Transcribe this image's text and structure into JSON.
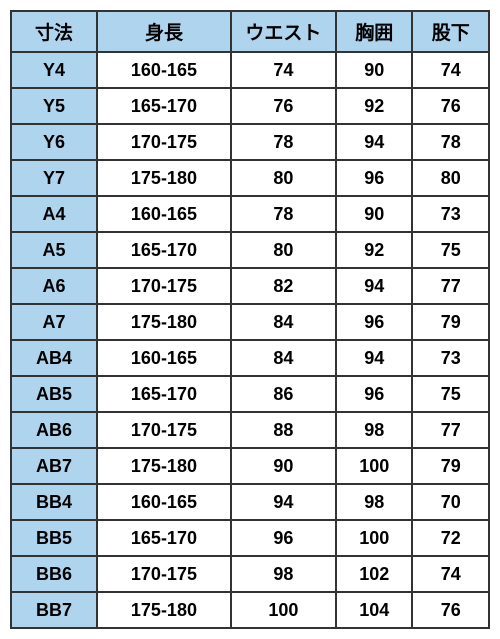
{
  "table": {
    "header_bg": "#aed4ee",
    "sizecol_bg": "#aed4ee",
    "border_color": "#333333",
    "text_color": "#000000",
    "columns": [
      "寸法",
      "身長",
      "ウエスト",
      "胸囲",
      "股下"
    ],
    "rows": [
      [
        "Y4",
        "160-165",
        "74",
        "90",
        "74"
      ],
      [
        "Y5",
        "165-170",
        "76",
        "92",
        "76"
      ],
      [
        "Y6",
        "170-175",
        "78",
        "94",
        "78"
      ],
      [
        "Y7",
        "175-180",
        "80",
        "96",
        "80"
      ],
      [
        "A4",
        "160-165",
        "78",
        "90",
        "73"
      ],
      [
        "A5",
        "165-170",
        "80",
        "92",
        "75"
      ],
      [
        "A6",
        "170-175",
        "82",
        "94",
        "77"
      ],
      [
        "A7",
        "175-180",
        "84",
        "96",
        "79"
      ],
      [
        "AB4",
        "160-165",
        "84",
        "94",
        "73"
      ],
      [
        "AB5",
        "165-170",
        "86",
        "96",
        "75"
      ],
      [
        "AB6",
        "170-175",
        "88",
        "98",
        "77"
      ],
      [
        "AB7",
        "175-180",
        "90",
        "100",
        "79"
      ],
      [
        "BB4",
        "160-165",
        "94",
        "98",
        "70"
      ],
      [
        "BB5",
        "165-170",
        "96",
        "100",
        "72"
      ],
      [
        "BB6",
        "170-175",
        "98",
        "102",
        "74"
      ],
      [
        "BB7",
        "175-180",
        "100",
        "104",
        "76"
      ]
    ]
  }
}
